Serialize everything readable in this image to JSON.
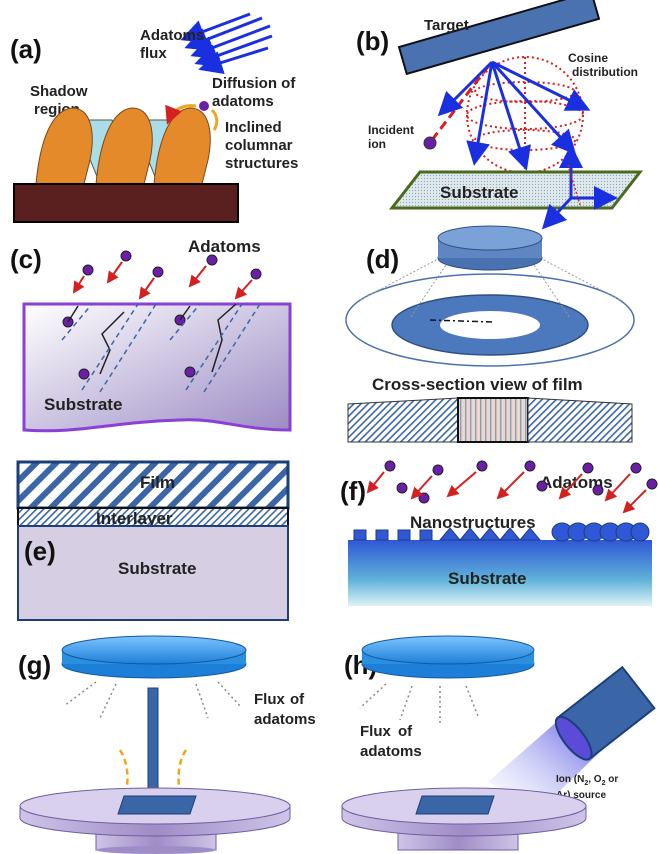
{
  "panels": {
    "a": {
      "label": "(a)",
      "flux_line1": "Adatoms",
      "flux_line2": "flux",
      "diffusion_line1": "Diffusion of",
      "diffusion_line2": "adatoms",
      "shadow_line1": "Shadow",
      "shadow_line2": "region",
      "inclined_line1": "Inclined",
      "inclined_line2": "columnar",
      "inclined_line3": "structures"
    },
    "b": {
      "label": "(b)",
      "target": "Target",
      "cosine_line1": "Cosine",
      "cosine_line2": "distribution",
      "incident_line1": "Incident",
      "incident_line2": "ion",
      "substrate": "Substrate"
    },
    "c": {
      "label": "(c)",
      "adatoms": "Adatoms",
      "substrate": "Substrate"
    },
    "d": {
      "label": "(d)",
      "cross_section": "Cross-section view of film"
    },
    "e": {
      "label": "(e)",
      "film": "Film",
      "interlayer": "Interlayer",
      "substrate": "Substrate"
    },
    "f": {
      "label": "(f)",
      "adatoms": "Adatoms",
      "nanostructures": "Nanostructures",
      "substrate": "Substrate"
    },
    "g": {
      "label": "(g)",
      "flux_line1": "Flux",
      "flux_line2": "of",
      "flux_line3": "adatoms"
    },
    "h": {
      "label": "(h)",
      "flux_line1": "Flux",
      "flux_line2": "of",
      "flux_line3": "adatoms",
      "ion_line1": "Ion (N",
      "ion_sub1": "2",
      "ion_mid": ", O",
      "ion_sub2": "2",
      "ion_end": " or",
      "ion_line2": "Ar) source"
    }
  },
  "colors": {
    "column_orange": "#e58a2a",
    "shadow_cyan": "#a9dde8",
    "base_brown": "#5a1f1f",
    "arrow_blue": "#1a2fe0",
    "arrow_red": "#d42020",
    "adatom_purple": "#6b1fa6",
    "target_blue": "#4a72b0",
    "disk_blue": "#2b8fe0",
    "stage_lavender": "#b7a9d6"
  }
}
